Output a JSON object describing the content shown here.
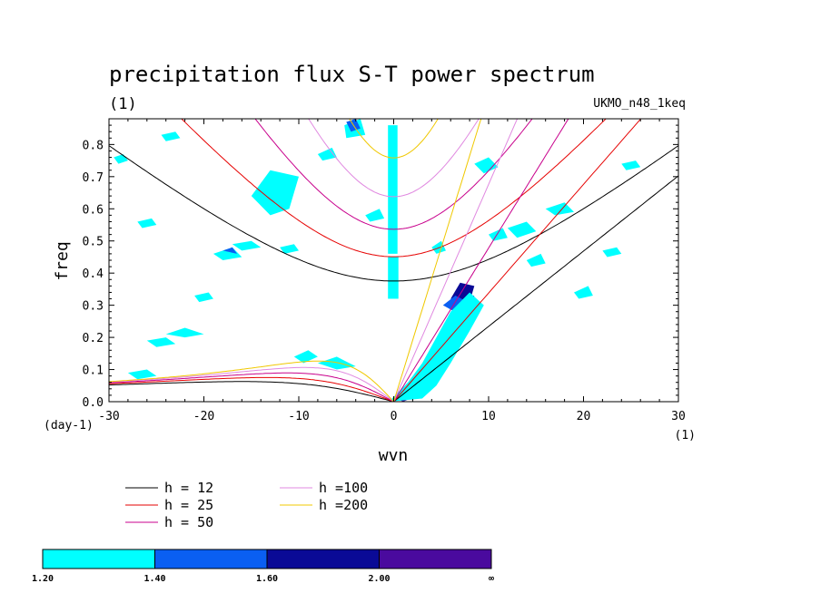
{
  "chart_data": {
    "type": "heatmap",
    "title": "precipitation flux S-T power spectrum",
    "subtitle": "(1)",
    "dataset_label": "UKMO_n48_1keq",
    "xlabel": "wvn",
    "ylabel": "freq",
    "x_unit": "(1)",
    "y_unit": "(day-1)",
    "xlim": [
      -30,
      30
    ],
    "ylim": [
      0,
      0.88
    ],
    "x_ticks": [
      -30,
      -20,
      -10,
      0,
      10,
      20,
      30
    ],
    "x_tick_labels": [
      "-30",
      "-20",
      "-10",
      "0",
      "10",
      "20",
      "30"
    ],
    "y_ticks": [
      0.0,
      0.1,
      0.2,
      0.3,
      0.4,
      0.5,
      0.6,
      0.7,
      0.8
    ],
    "y_tick_labels": [
      "0.0",
      "0.1",
      "0.2",
      "0.3",
      "0.4",
      "0.5",
      "0.6",
      "0.7",
      "0.8"
    ],
    "grid": false,
    "contour_levels": [
      "1.20",
      "1.40",
      "1.60",
      "2.00",
      "∞"
    ],
    "contour_colors": [
      "#00ffff",
      "#0a5ff2",
      "#0a0a96",
      "#4a0a9e"
    ],
    "dispersion_legend": [
      {
        "label": "h = 12",
        "h": 12,
        "color": "#000000"
      },
      {
        "label": "h = 25",
        "h": 25,
        "color": "#e60000"
      },
      {
        "label": "h = 50",
        "h": 50,
        "color": "#c8008c"
      },
      {
        "label": "h =100",
        "h": 100,
        "color": "#e088e0"
      },
      {
        "label": "h =200",
        "h": 200,
        "color": "#f0c800"
      }
    ],
    "regions": [
      {
        "level": 4,
        "pts": [
          [
            0.3,
            0.01
          ],
          [
            2,
            0.04
          ],
          [
            3.5,
            0.1
          ],
          [
            5,
            0.18
          ],
          [
            6.5,
            0.26
          ],
          [
            8,
            0.33
          ],
          [
            8.5,
            0.33
          ],
          [
            7,
            0.24
          ],
          [
            5.5,
            0.14
          ],
          [
            4,
            0.07
          ],
          [
            2.5,
            0.02
          ],
          [
            1,
            0.0
          ]
        ]
      },
      {
        "level": 3,
        "pts": [
          [
            6,
            0.32
          ],
          [
            7,
            0.37
          ],
          [
            8.5,
            0.36
          ],
          [
            8,
            0.31
          ]
        ]
      },
      {
        "level": 2,
        "pts": [
          [
            5.2,
            0.3
          ],
          [
            6.5,
            0.33
          ],
          [
            8.5,
            0.3
          ],
          [
            7,
            0.27
          ]
        ]
      },
      {
        "level": 1,
        "pts": [
          [
            -0.5,
            0.0
          ],
          [
            1.5,
            0.06
          ],
          [
            3,
            0.12
          ],
          [
            4.5,
            0.2
          ],
          [
            6,
            0.28
          ],
          [
            8,
            0.34
          ],
          [
            9.5,
            0.3
          ],
          [
            8,
            0.22
          ],
          [
            6,
            0.12
          ],
          [
            4.5,
            0.05
          ],
          [
            3,
            0.01
          ]
        ]
      },
      {
        "level": 3,
        "pts": [
          [
            -0.3,
            0.4
          ],
          [
            0.3,
            0.4
          ],
          [
            0.3,
            0.45
          ],
          [
            -0.3,
            0.45
          ]
        ]
      },
      {
        "level": 3,
        "pts": [
          [
            -0.4,
            0.34
          ],
          [
            0.4,
            0.34
          ],
          [
            0.4,
            0.37
          ],
          [
            -0.4,
            0.37
          ]
        ]
      },
      {
        "level": 2,
        "pts": [
          [
            -0.5,
            0.6
          ],
          [
            0.3,
            0.6
          ],
          [
            0.3,
            0.66
          ],
          [
            -0.5,
            0.66
          ]
        ]
      },
      {
        "level": 1,
        "pts": [
          [
            -0.6,
            0.46
          ],
          [
            0.4,
            0.46
          ],
          [
            0.4,
            0.86
          ],
          [
            -0.6,
            0.86
          ]
        ]
      },
      {
        "level": 1,
        "pts": [
          [
            -0.6,
            0.32
          ],
          [
            0.5,
            0.32
          ],
          [
            0.5,
            0.45
          ],
          [
            -0.6,
            0.45
          ]
        ]
      },
      {
        "level": 2,
        "pts": [
          [
            -14,
            0.68
          ],
          [
            -12,
            0.7
          ],
          [
            -11,
            0.66
          ],
          [
            -13,
            0.64
          ]
        ]
      },
      {
        "level": 1,
        "pts": [
          [
            -15,
            0.64
          ],
          [
            -13,
            0.72
          ],
          [
            -10,
            0.7
          ],
          [
            -11,
            0.6
          ],
          [
            -13,
            0.58
          ]
        ]
      },
      {
        "level": 1,
        "pts": [
          [
            -10.5,
            0.14
          ],
          [
            -9,
            0.16
          ],
          [
            -8,
            0.14
          ],
          [
            -9.5,
            0.12
          ]
        ]
      },
      {
        "level": 1,
        "pts": [
          [
            -8,
            0.12
          ],
          [
            -6,
            0.14
          ],
          [
            -4,
            0.11
          ],
          [
            -6,
            0.1
          ]
        ]
      },
      {
        "level": 1,
        "pts": [
          [
            -19,
            0.46
          ],
          [
            -17,
            0.48
          ],
          [
            -16,
            0.45
          ],
          [
            -18,
            0.44
          ]
        ]
      },
      {
        "level": 2,
        "pts": [
          [
            -18,
            0.47
          ],
          [
            -17,
            0.48
          ],
          [
            -16.5,
            0.46
          ]
        ]
      },
      {
        "level": 1,
        "pts": [
          [
            -24,
            0.21
          ],
          [
            -22,
            0.23
          ],
          [
            -20,
            0.21
          ],
          [
            -22,
            0.2
          ]
        ]
      },
      {
        "level": 1,
        "pts": [
          [
            -26,
            0.19
          ],
          [
            -24,
            0.2
          ],
          [
            -23,
            0.18
          ],
          [
            -25,
            0.17
          ]
        ]
      },
      {
        "level": 1,
        "pts": [
          [
            -28,
            0.09
          ],
          [
            -26,
            0.1
          ],
          [
            -25,
            0.08
          ],
          [
            -27,
            0.07
          ]
        ]
      },
      {
        "level": 1,
        "pts": [
          [
            -5.2,
            0.86
          ],
          [
            -3.5,
            0.88
          ],
          [
            -3,
            0.83
          ],
          [
            -5,
            0.82
          ]
        ]
      },
      {
        "level": 2,
        "pts": [
          [
            -5,
            0.87
          ],
          [
            -4,
            0.88
          ],
          [
            -3.5,
            0.85
          ],
          [
            -4.5,
            0.84
          ]
        ]
      },
      {
        "level": 1,
        "pts": [
          [
            -8,
            0.77
          ],
          [
            -6.5,
            0.79
          ],
          [
            -6,
            0.76
          ],
          [
            -7.5,
            0.75
          ]
        ]
      },
      {
        "level": 1,
        "pts": [
          [
            -17,
            0.49
          ],
          [
            -15,
            0.5
          ],
          [
            -14,
            0.48
          ],
          [
            -16,
            0.47
          ]
        ]
      },
      {
        "level": 1,
        "pts": [
          [
            -3,
            0.58
          ],
          [
            -1.5,
            0.6
          ],
          [
            -1,
            0.57
          ],
          [
            -2.5,
            0.56
          ]
        ]
      },
      {
        "level": 1,
        "pts": [
          [
            12,
            0.54
          ],
          [
            14,
            0.56
          ],
          [
            15,
            0.53
          ],
          [
            13,
            0.51
          ]
        ]
      },
      {
        "level": 1,
        "pts": [
          [
            16,
            0.6
          ],
          [
            18,
            0.62
          ],
          [
            19,
            0.59
          ],
          [
            17,
            0.58
          ]
        ]
      },
      {
        "level": 1,
        "pts": [
          [
            24,
            0.74
          ],
          [
            25.5,
            0.75
          ],
          [
            26,
            0.73
          ],
          [
            24.5,
            0.72
          ]
        ]
      },
      {
        "level": 1,
        "pts": [
          [
            14,
            0.44
          ],
          [
            15.5,
            0.46
          ],
          [
            16,
            0.43
          ],
          [
            14.5,
            0.42
          ]
        ]
      },
      {
        "level": 1,
        "pts": [
          [
            19,
            0.34
          ],
          [
            20.5,
            0.36
          ],
          [
            21,
            0.33
          ],
          [
            19.5,
            0.32
          ]
        ]
      },
      {
        "level": 1,
        "pts": [
          [
            8.5,
            0.74
          ],
          [
            10,
            0.76
          ],
          [
            11,
            0.73
          ],
          [
            9.5,
            0.71
          ]
        ]
      },
      {
        "level": 1,
        "pts": [
          [
            -21,
            0.33
          ],
          [
            -19.5,
            0.34
          ],
          [
            -19,
            0.32
          ],
          [
            -20.5,
            0.31
          ]
        ]
      },
      {
        "level": 1,
        "pts": [
          [
            -27,
            0.56
          ],
          [
            -25.5,
            0.57
          ],
          [
            -25,
            0.55
          ],
          [
            -26.5,
            0.54
          ]
        ]
      },
      {
        "level": 1,
        "pts": [
          [
            -24.5,
            0.83
          ],
          [
            -23,
            0.84
          ],
          [
            -22.5,
            0.82
          ],
          [
            -24,
            0.81
          ]
        ]
      },
      {
        "level": 1,
        "pts": [
          [
            4,
            0.48
          ],
          [
            5,
            0.5
          ],
          [
            5.5,
            0.47
          ],
          [
            4.5,
            0.46
          ]
        ]
      },
      {
        "level": 1,
        "pts": [
          [
            10,
            0.52
          ],
          [
            11.5,
            0.54
          ],
          [
            12,
            0.51
          ],
          [
            10.5,
            0.5
          ]
        ]
      },
      {
        "level": 1,
        "pts": [
          [
            -12,
            0.48
          ],
          [
            -10.5,
            0.49
          ],
          [
            -10,
            0.47
          ],
          [
            -11.5,
            0.46
          ]
        ]
      },
      {
        "level": 1,
        "pts": [
          [
            22,
            0.47
          ],
          [
            23.5,
            0.48
          ],
          [
            24,
            0.46
          ],
          [
            22.5,
            0.45
          ]
        ]
      },
      {
        "level": 1,
        "pts": [
          [
            -29.5,
            0.76
          ],
          [
            -28.5,
            0.77
          ],
          [
            -28,
            0.75
          ],
          [
            -29,
            0.74
          ]
        ]
      }
    ]
  }
}
